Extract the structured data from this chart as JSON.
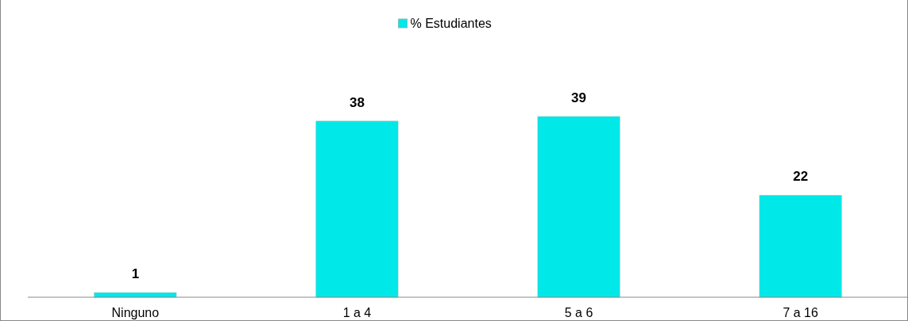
{
  "chart_data": {
    "type": "bar",
    "categories": [
      "Ninguno",
      "1 a 4",
      "5 a 6",
      "7 a 16"
    ],
    "series": [
      {
        "name": "% Estudiantes",
        "color": "#00e8e8",
        "values": [
          1,
          38,
          39,
          22
        ]
      }
    ],
    "data_labels": true,
    "legend": "top",
    "grid": false
  }
}
